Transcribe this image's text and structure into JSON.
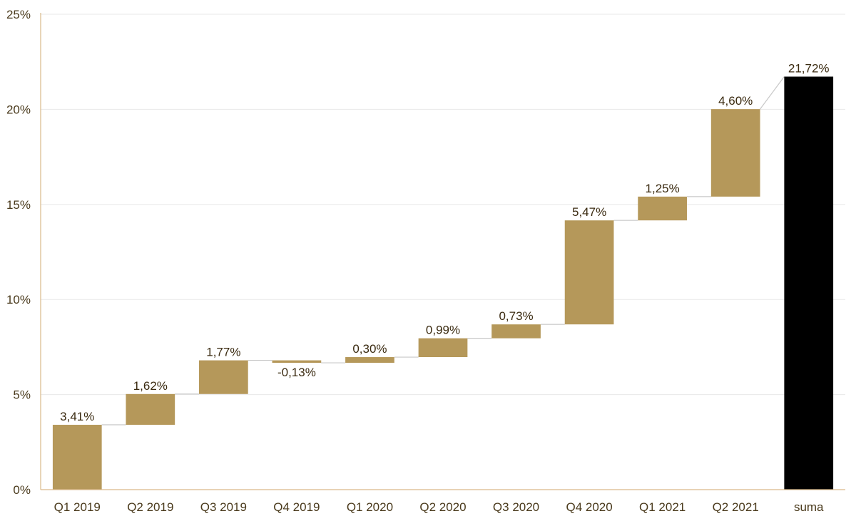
{
  "chart_data": {
    "type": "bar",
    "subtype": "waterfall",
    "categories": [
      "Q1 2019",
      "Q2 2019",
      "Q3 2019",
      "Q4 2019",
      "Q1 2020",
      "Q2 2020",
      "Q3 2020",
      "Q4 2020",
      "Q1 2021",
      "Q2 2021",
      "suma"
    ],
    "values": [
      3.41,
      1.62,
      1.77,
      -0.13,
      0.3,
      0.99,
      0.73,
      5.47,
      1.25,
      4.6,
      21.72
    ],
    "data_labels": [
      "3,41%",
      "1,62%",
      "1,77%",
      "-0,13%",
      "0,30%",
      "0,99%",
      "0,73%",
      "5,47%",
      "1,25%",
      "4,60%",
      "21,72%"
    ],
    "total_index": 10,
    "ylim": [
      0,
      25
    ],
    "yticks": [
      0,
      5,
      10,
      15,
      20,
      25
    ],
    "ytick_labels": [
      "0%",
      "5%",
      "10%",
      "15%",
      "20%",
      "25%"
    ],
    "title": "",
    "xlabel": "",
    "ylabel": "",
    "grid": true,
    "colors": {
      "increase": "#b5985a",
      "total": "#000000",
      "connector": "#c8c8c8",
      "grid": "#e8e8e8",
      "axis": "#d9b98a",
      "text": "#4a3a1c"
    }
  }
}
